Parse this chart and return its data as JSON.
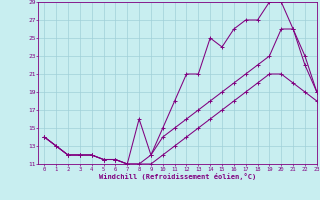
{
  "xlabel": "Windchill (Refroidissement éolien,°C)",
  "bg_color": "#c8eef0",
  "line_color": "#800080",
  "grid_color": "#a0d0d8",
  "xlim": [
    -0.5,
    23
  ],
  "ylim": [
    11,
    29
  ],
  "xticks": [
    0,
    1,
    2,
    3,
    4,
    5,
    6,
    7,
    8,
    9,
    10,
    11,
    12,
    13,
    14,
    15,
    16,
    17,
    18,
    19,
    20,
    21,
    22,
    23
  ],
  "yticks": [
    11,
    13,
    15,
    17,
    19,
    21,
    23,
    25,
    27,
    29
  ],
  "line1_x": [
    0,
    1,
    2,
    3,
    4,
    5,
    6,
    7,
    8,
    9,
    10,
    11,
    12,
    13,
    14,
    15,
    16,
    17,
    18,
    19,
    20,
    21,
    22,
    23
  ],
  "line1_y": [
    14,
    13,
    12,
    12,
    12,
    11.5,
    11.5,
    11,
    11,
    11,
    12,
    13,
    14,
    15,
    16,
    17,
    18,
    19,
    20,
    21,
    21,
    20,
    19,
    18
  ],
  "line2_x": [
    0,
    1,
    2,
    3,
    4,
    5,
    6,
    7,
    8,
    9,
    10,
    11,
    12,
    13,
    14,
    15,
    16,
    17,
    18,
    19,
    20,
    21,
    22,
    23
  ],
  "line2_y": [
    14,
    13,
    12,
    12,
    12,
    11.5,
    11.5,
    11,
    16,
    12,
    15,
    18,
    21,
    21,
    25,
    24,
    26,
    27,
    27,
    29,
    29,
    26,
    22,
    19
  ],
  "line3_x": [
    0,
    2,
    3,
    4,
    5,
    6,
    7,
    8,
    9,
    10,
    11,
    12,
    13,
    14,
    15,
    16,
    17,
    18,
    19,
    20,
    21,
    22,
    23
  ],
  "line3_y": [
    14,
    12,
    12,
    12,
    11.5,
    11.5,
    11,
    11,
    12,
    14,
    15,
    16,
    17,
    18,
    19,
    20,
    21,
    22,
    23,
    26,
    26,
    23,
    19
  ]
}
